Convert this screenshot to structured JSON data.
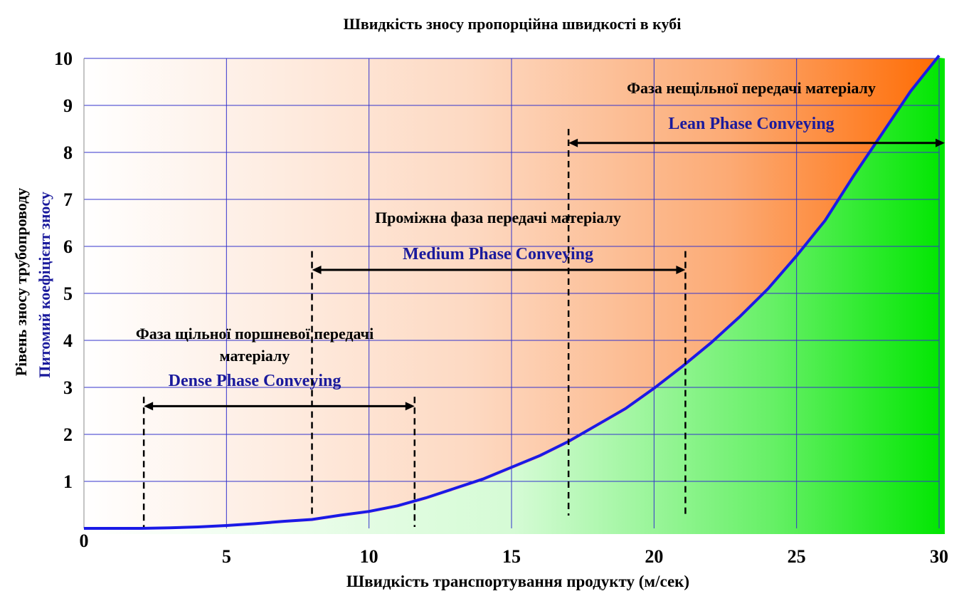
{
  "chart_data": {
    "type": "line",
    "title": "Швидкість зносу пропорційна швидкості в кубі",
    "xlabel": "Швидкість транспортування продукту (м/сек)",
    "ylabel": [
      "Рівень зносу трубопроводу",
      "Питомий коефіцієнт зносу"
    ],
    "xlim": [
      0,
      30
    ],
    "ylim": [
      0,
      10
    ],
    "x_ticks": [
      "0",
      "5",
      "10",
      "15",
      "20",
      "25",
      "30"
    ],
    "y_ticks": [
      "1",
      "2",
      "3",
      "4",
      "5",
      "6",
      "7",
      "8",
      "9",
      "10"
    ],
    "grid": true,
    "series": [
      {
        "x": [
          0,
          2,
          3,
          4,
          5,
          6,
          7,
          8,
          9,
          10,
          11,
          12,
          13,
          14,
          15,
          16,
          17,
          18,
          19,
          20,
          21,
          22,
          23,
          24,
          25,
          26,
          27,
          28,
          29,
          30
        ],
        "y": [
          0,
          0,
          0.01,
          0.03,
          0.06,
          0.1,
          0.15,
          0.19,
          0.28,
          0.36,
          0.48,
          0.65,
          0.85,
          1.05,
          1.3,
          1.55,
          1.85,
          2.2,
          2.55,
          2.98,
          3.45,
          3.95,
          4.5,
          5.1,
          5.8,
          6.55,
          7.5,
          8.4,
          9.3,
          10.2
        ],
        "color": "#1a1ae6"
      }
    ],
    "phases": [
      {
        "label_uk": "Фаза щільної поршневої передачі матеріалу",
        "label_uk_lines": [
          "Фаза щільної поршневої передачі",
          "матеріалу"
        ],
        "label_en": "Dense Phase Conveying",
        "x_start": 2.1,
        "x_end": 11.6,
        "arrow_y": 2.6,
        "dash_top": 2.8
      },
      {
        "label_uk": "Проміжна фаза передачі матеріалу",
        "label_en": "Medium Phase Conveying",
        "x_start": 8.0,
        "x_end": 21.1,
        "arrow_y": 5.5,
        "dash_top": 5.9
      },
      {
        "label_uk": "Фаза нещільної передачі матеріалу",
        "label_en": "Lean Phase Conveying",
        "x_start": 17.0,
        "x_end": 30.2,
        "arrow_y": 8.2,
        "dash_top": 8.5
      }
    ],
    "colors": {
      "area_above_start": "#ffffff",
      "area_above_end": "#ff7a1a",
      "area_below_start": "#ffffff",
      "area_below_end": "#00ee00",
      "grid": "#3333cc",
      "arrow": "#000000"
    }
  }
}
